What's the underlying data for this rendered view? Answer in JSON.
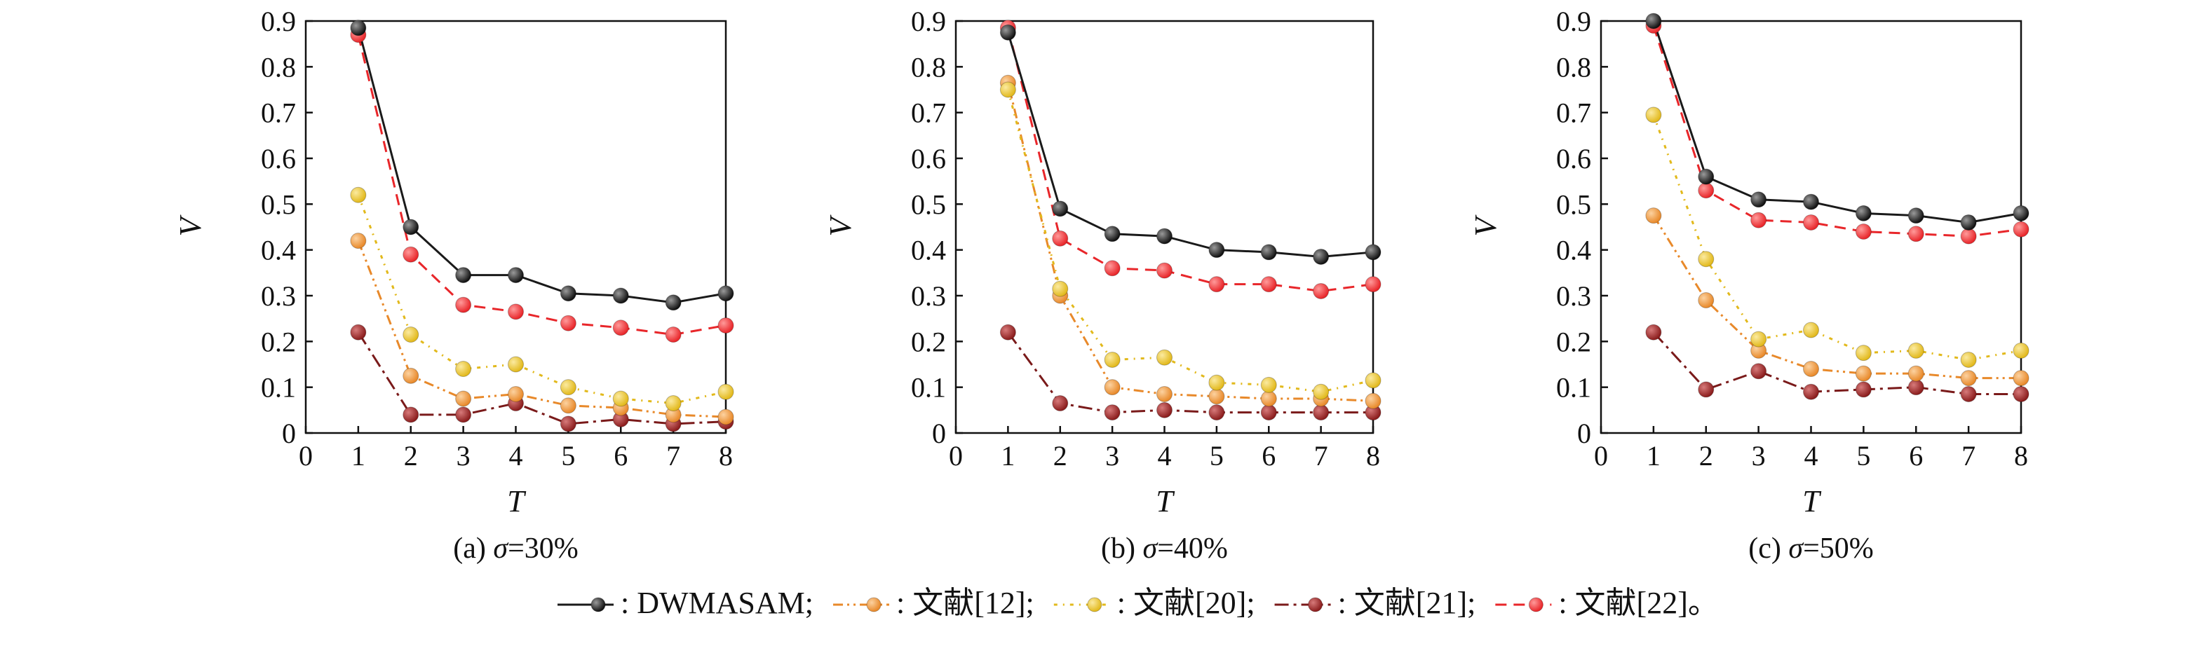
{
  "chart_data": [
    {
      "type": "line",
      "caption": "(a) σ=30%",
      "caption_prefix": "(a) ",
      "caption_symbol": "σ",
      "caption_value": "=30%",
      "xlabel": "T",
      "ylabel": "V",
      "xlim": [
        0,
        8
      ],
      "ylim": [
        0,
        0.9
      ],
      "xticks": [
        "0",
        "1",
        "2",
        "3",
        "4",
        "5",
        "6",
        "7",
        "8"
      ],
      "yticks": [
        "0",
        "0.1",
        "0.2",
        "0.3",
        "0.4",
        "0.5",
        "0.6",
        "0.7",
        "0.8",
        "0.9"
      ],
      "x": [
        1,
        2,
        3,
        4,
        5,
        6,
        7,
        8
      ],
      "series": [
        {
          "name": "DWMASAM",
          "values": [
            0.885,
            0.45,
            0.345,
            0.345,
            0.305,
            0.3,
            0.285,
            0.305
          ]
        },
        {
          "name": "文献[12]",
          "values": [
            0.42,
            0.125,
            0.075,
            0.085,
            0.06,
            0.055,
            0.04,
            0.035
          ]
        },
        {
          "name": "文献[20]",
          "values": [
            0.52,
            0.215,
            0.14,
            0.15,
            0.1,
            0.075,
            0.065,
            0.09
          ]
        },
        {
          "name": "文献[21]",
          "values": [
            0.22,
            0.04,
            0.04,
            0.065,
            0.02,
            0.03,
            0.02,
            0.025
          ]
        },
        {
          "name": "文献[22]",
          "values": [
            0.87,
            0.39,
            0.28,
            0.265,
            0.24,
            0.23,
            0.215,
            0.235
          ]
        }
      ]
    },
    {
      "type": "line",
      "caption": "(b) σ=40%",
      "caption_prefix": "(b) ",
      "caption_symbol": "σ",
      "caption_value": "=40%",
      "xlabel": "T",
      "ylabel": "V",
      "xlim": [
        0,
        8
      ],
      "ylim": [
        0,
        0.9
      ],
      "xticks": [
        "0",
        "1",
        "2",
        "3",
        "4",
        "5",
        "6",
        "7",
        "8"
      ],
      "yticks": [
        "0",
        "0.1",
        "0.2",
        "0.3",
        "0.4",
        "0.5",
        "0.6",
        "0.7",
        "0.8",
        "0.9"
      ],
      "x": [
        1,
        2,
        3,
        4,
        5,
        6,
        7,
        8
      ],
      "series": [
        {
          "name": "DWMASAM",
          "values": [
            0.875,
            0.49,
            0.435,
            0.43,
            0.4,
            0.395,
            0.385,
            0.395
          ]
        },
        {
          "name": "文献[12]",
          "values": [
            0.765,
            0.3,
            0.1,
            0.085,
            0.08,
            0.075,
            0.075,
            0.07
          ]
        },
        {
          "name": "文献[20]",
          "values": [
            0.75,
            0.315,
            0.16,
            0.165,
            0.11,
            0.105,
            0.09,
            0.115
          ]
        },
        {
          "name": "文献[21]",
          "values": [
            0.22,
            0.065,
            0.045,
            0.05,
            0.045,
            0.045,
            0.045,
            0.045
          ]
        },
        {
          "name": "文献[22]",
          "values": [
            0.885,
            0.425,
            0.36,
            0.355,
            0.325,
            0.325,
            0.31,
            0.325
          ]
        }
      ]
    },
    {
      "type": "line",
      "caption": "(c) σ=50%",
      "caption_prefix": "(c) ",
      "caption_symbol": "σ",
      "caption_value": "=50%",
      "xlabel": "T",
      "ylabel": "V",
      "xlim": [
        0,
        8
      ],
      "ylim": [
        0,
        0.9
      ],
      "xticks": [
        "0",
        "1",
        "2",
        "3",
        "4",
        "5",
        "6",
        "7",
        "8"
      ],
      "yticks": [
        "0",
        "0.1",
        "0.2",
        "0.3",
        "0.4",
        "0.5",
        "0.6",
        "0.7",
        "0.8",
        "0.9"
      ],
      "x": [
        1,
        2,
        3,
        4,
        5,
        6,
        7,
        8
      ],
      "series": [
        {
          "name": "DWMASAM",
          "values": [
            0.9,
            0.56,
            0.51,
            0.505,
            0.48,
            0.475,
            0.46,
            0.48
          ]
        },
        {
          "name": "文献[12]",
          "values": [
            0.475,
            0.29,
            0.18,
            0.14,
            0.13,
            0.13,
            0.12,
            0.12
          ]
        },
        {
          "name": "文献[20]",
          "values": [
            0.695,
            0.38,
            0.205,
            0.225,
            0.175,
            0.18,
            0.16,
            0.18
          ]
        },
        {
          "name": "文献[21]",
          "values": [
            0.22,
            0.095,
            0.135,
            0.09,
            0.095,
            0.1,
            0.085,
            0.085
          ]
        },
        {
          "name": "文献[22]",
          "values": [
            0.89,
            0.53,
            0.465,
            0.46,
            0.44,
            0.435,
            0.43,
            0.445
          ]
        }
      ]
    }
  ],
  "legend": [
    {
      "label": ": DWMASAM;",
      "color": "#1a1a1a",
      "dash": "solid"
    },
    {
      "label": ": 文献[12];",
      "color": "#e8892a",
      "dash": "dashdotdot"
    },
    {
      "label": ": 文献[20];",
      "color": "#e2b91c",
      "dash": "dashdot"
    },
    {
      "label": ": 文献[21];",
      "color": "#8b1d1d",
      "dash": "dashdotlong"
    },
    {
      "label": ": 文献[22]。",
      "color": "#e8262a",
      "dash": "dashed"
    }
  ]
}
